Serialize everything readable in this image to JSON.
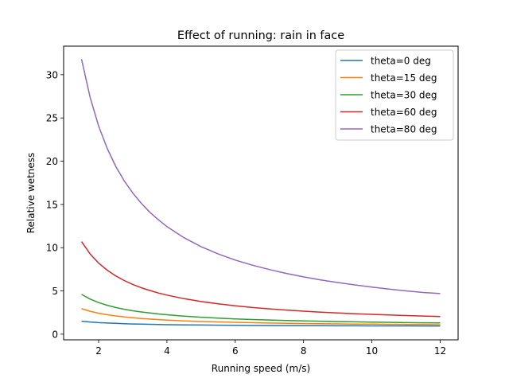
{
  "chart_data": {
    "type": "line",
    "title": "Effect of running: rain in face",
    "xlabel": "Running speed (m/s)",
    "ylabel": "Relative wetness",
    "xlim": [
      0.975,
      12.525
    ],
    "ylim": [
      -0.65,
      33.3
    ],
    "xticks": [
      2,
      4,
      6,
      8,
      10,
      12
    ],
    "yticks": [
      0,
      5,
      10,
      15,
      20,
      25,
      30
    ],
    "legend_position": "top-right",
    "x": [
      1.5,
      1.75,
      2.0,
      2.25,
      2.5,
      2.75,
      3.0,
      3.25,
      3.5,
      3.75,
      4.0,
      4.5,
      5.0,
      5.5,
      6.0,
      6.5,
      7.0,
      7.5,
      8.0,
      8.5,
      9.0,
      9.5,
      10.0,
      10.5,
      11.0,
      11.5,
      12.0
    ],
    "series": [
      {
        "name": "theta=0 deg",
        "color": "#1f77b4",
        "values": [
          1.5,
          1.41,
          1.34,
          1.29,
          1.25,
          1.21,
          1.18,
          1.16,
          1.14,
          1.12,
          1.1,
          1.08,
          1.06,
          1.04,
          1.03,
          1.01,
          1.0,
          0.99,
          0.99,
          0.98,
          0.97,
          0.97,
          0.96,
          0.96,
          0.96,
          0.95,
          0.95
        ]
      },
      {
        "name": "theta=15 deg",
        "color": "#ff7f0e",
        "values": [
          2.95,
          2.65,
          2.42,
          2.25,
          2.11,
          1.99,
          1.9,
          1.82,
          1.75,
          1.69,
          1.63,
          1.54,
          1.47,
          1.42,
          1.37,
          1.33,
          1.29,
          1.26,
          1.24,
          1.21,
          1.19,
          1.17,
          1.16,
          1.14,
          1.13,
          1.12,
          1.1
        ]
      },
      {
        "name": "theta=30 deg",
        "color": "#2ca02c",
        "values": [
          4.6,
          4.06,
          3.66,
          3.34,
          3.09,
          2.88,
          2.71,
          2.57,
          2.45,
          2.34,
          2.25,
          2.09,
          1.96,
          1.86,
          1.77,
          1.7,
          1.64,
          1.58,
          1.54,
          1.5,
          1.46,
          1.43,
          1.4,
          1.37,
          1.34,
          1.32,
          1.3
        ]
      },
      {
        "name": "theta=60 deg",
        "color": "#d62728",
        "values": [
          10.7,
          9.28,
          8.22,
          7.4,
          6.74,
          6.2,
          5.75,
          5.37,
          5.05,
          4.76,
          4.52,
          4.11,
          3.78,
          3.51,
          3.28,
          3.09,
          2.93,
          2.79,
          2.66,
          2.55,
          2.46,
          2.37,
          2.29,
          2.22,
          2.16,
          2.1,
          2.05
        ]
      },
      {
        "name": "theta=80 deg",
        "color": "#9467bd",
        "values": [
          31.8,
          27.38,
          24.06,
          21.48,
          19.41,
          17.72,
          16.32,
          15.13,
          14.1,
          13.22,
          12.44,
          11.15,
          10.12,
          9.28,
          8.57,
          7.98,
          7.47,
          7.02,
          6.63,
          6.28,
          5.97,
          5.7,
          5.45,
          5.22,
          5.01,
          4.82,
          4.7
        ]
      }
    ]
  }
}
